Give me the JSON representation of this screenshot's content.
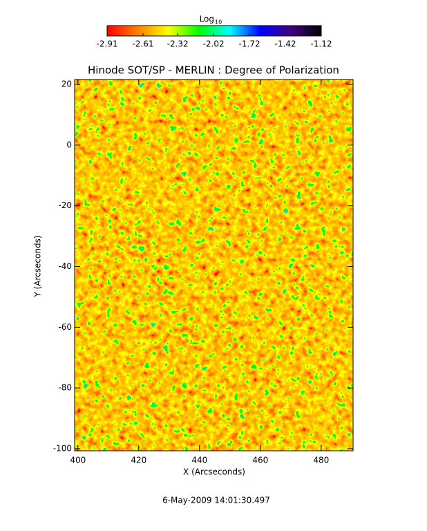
{
  "chart_data": {
    "type": "image",
    "title": "Hinode SOT/SP - MERLIN : Degree of Polarization",
    "x_label": "X (Arcseconds)",
    "y_label": "Y (Arcseconds)",
    "xlim": [
      398.9,
      490.5
    ],
    "ylim": [
      -100.7,
      21.6
    ],
    "xticks": [
      400,
      420,
      440,
      460,
      480
    ],
    "yticks": [
      20,
      0,
      -20,
      -40,
      -60,
      -80,
      -100
    ],
    "colorbar": {
      "label": "Log",
      "label_subscript": "10",
      "lim": [
        -2.91,
        -1.12
      ],
      "ticks": [
        -2.91,
        -2.61,
        -2.32,
        -2.02,
        -1.72,
        -1.42,
        -1.12
      ],
      "colors": [
        "#ff0000",
        "#ff8000",
        "#ffff00",
        "#00ff00",
        "#00ffff",
        "#0000ff",
        "#400080",
        "#000000"
      ]
    },
    "annotation": "6-May-2009 14:01:30.497"
  }
}
